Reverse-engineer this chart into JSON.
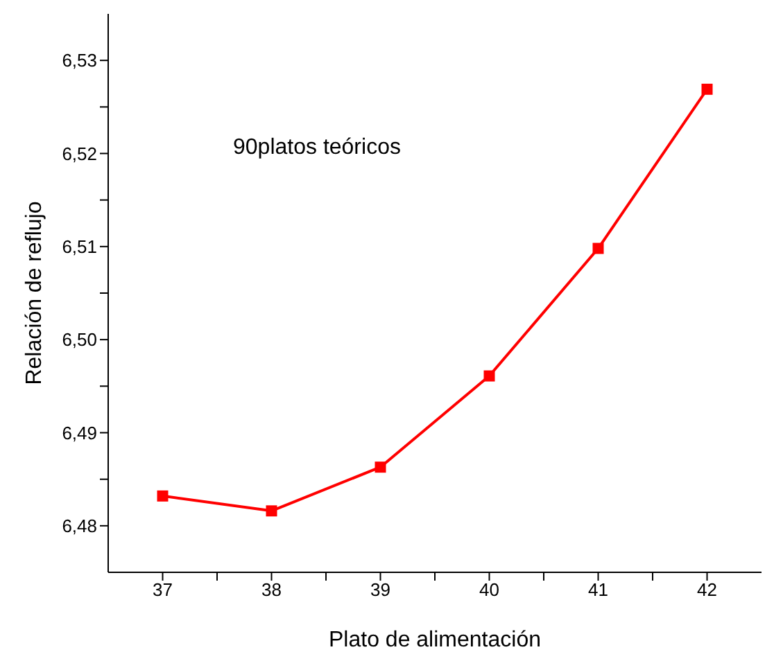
{
  "chart_data": {
    "type": "line",
    "xlabel": "Plato de alimentación",
    "ylabel": "Relación de reflujo",
    "annotations": [
      "90platos teóricos"
    ],
    "x": [
      37,
      38,
      39,
      40,
      41,
      42
    ],
    "series": [
      {
        "color": "#ff0000",
        "values": [
          6.4832,
          6.4816,
          6.4863,
          6.4961,
          6.5098,
          6.5269
        ]
      }
    ],
    "xlim": [
      36.5,
      42.5
    ],
    "xticks": [
      {
        "value": 37,
        "label": "37"
      },
      {
        "value": 37.5,
        "label": null
      },
      {
        "value": 38,
        "label": "38"
      },
      {
        "value": 38.5,
        "label": null
      },
      {
        "value": 39,
        "label": "39"
      },
      {
        "value": 39.5,
        "label": null
      },
      {
        "value": 40,
        "label": "40"
      },
      {
        "value": 40.5,
        "label": null
      },
      {
        "value": 41,
        "label": "41"
      },
      {
        "value": 41.5,
        "label": null
      },
      {
        "value": 42,
        "label": "42"
      }
    ],
    "ylim": [
      6.475,
      6.535
    ],
    "yticks": [
      {
        "value": 6.48,
        "label": "6,48"
      },
      {
        "value": 6.485,
        "label": null
      },
      {
        "value": 6.49,
        "label": "6,49"
      },
      {
        "value": 6.495,
        "label": null
      },
      {
        "value": 6.5,
        "label": "6,50"
      },
      {
        "value": 6.505,
        "label": null
      },
      {
        "value": 6.51,
        "label": "6,51"
      },
      {
        "value": 6.515,
        "label": null
      },
      {
        "value": 6.52,
        "label": "6,52"
      },
      {
        "value": 6.525,
        "label": null
      },
      {
        "value": 6.53,
        "label": "6,53"
      }
    ],
    "grid": false,
    "marker": "square",
    "line_style": "solid",
    "legend": false
  }
}
